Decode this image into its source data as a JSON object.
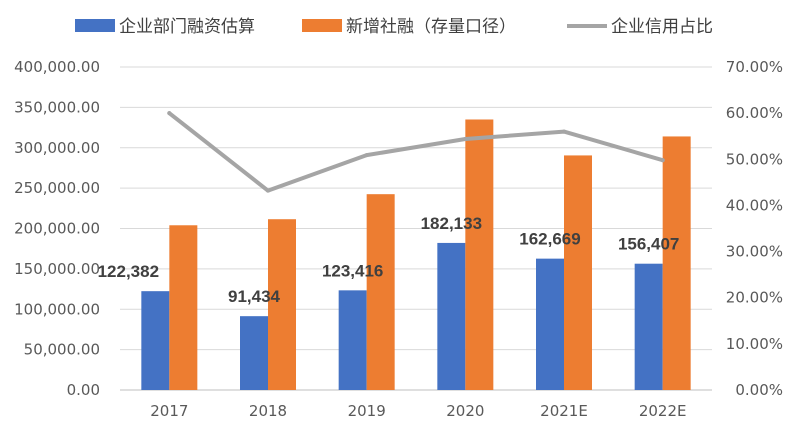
{
  "chart_data": {
    "type": "bar",
    "categories": [
      "2017",
      "2018",
      "2019",
      "2020",
      "2021E",
      "2022E"
    ],
    "series": [
      {
        "name": "企业部门融资估算",
        "kind": "bar",
        "axis": "left",
        "color": "#4472C4",
        "values": [
          122382,
          91434,
          123416,
          182133,
          162669,
          156407
        ],
        "labels": [
          "122,382",
          "91,434",
          "123,416",
          "182,133",
          "162,669",
          "156,407"
        ]
      },
      {
        "name": "新增社融（存量口径）",
        "kind": "bar",
        "axis": "left",
        "color": "#ED7D31",
        "values": [
          204000,
          211500,
          242500,
          335000,
          290500,
          314000
        ]
      },
      {
        "name": "企业信用占比",
        "kind": "line",
        "axis": "right",
        "color": "#A5A5A5",
        "values": [
          0.6,
          0.432,
          0.509,
          0.544,
          0.56,
          0.498
        ]
      }
    ],
    "y_left": {
      "range": [
        0,
        400000
      ],
      "ticks": [
        0,
        50000,
        100000,
        150000,
        200000,
        250000,
        300000,
        350000,
        400000
      ],
      "tick_labels": [
        "0.00",
        "50,000.00",
        "100,000.00",
        "150,000.00",
        "200,000.00",
        "250,000.00",
        "300,000.00",
        "350,000.00",
        "400,000.00"
      ]
    },
    "y_right": {
      "range": [
        0,
        0.7
      ],
      "ticks": [
        0,
        0.1,
        0.2,
        0.3,
        0.4,
        0.5,
        0.6,
        0.7
      ],
      "tick_labels": [
        "0.00%",
        "10.00%",
        "20.00%",
        "30.00%",
        "40.00%",
        "50.00%",
        "60.00%",
        "70.00%"
      ]
    },
    "grid": true,
    "legend_position": "top"
  }
}
